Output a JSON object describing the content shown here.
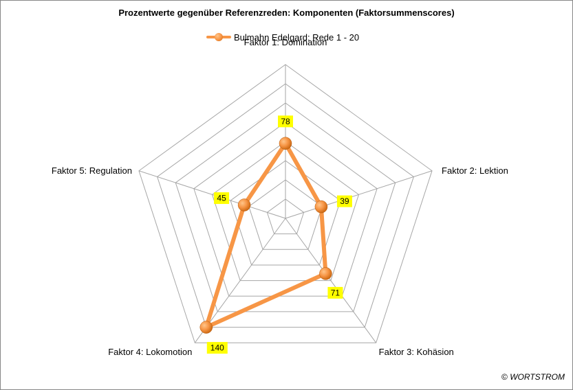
{
  "chart_data": {
    "type": "radar",
    "title": "Prozentwerte gegenüber Referenzreden:  Komponenten (Faktorsummenscores)",
    "categories": [
      "Faktor 1: Domination",
      "Faktor 2: Lektion",
      "Faktor 3: Kohäsion",
      "Faktor 4: Lokomotion",
      "Faktor 5: Regulation"
    ],
    "series": [
      {
        "name": "Bulmahn Edelgard: Rede 1 - 20",
        "values": [
          78,
          39,
          71,
          140,
          45
        ],
        "color": "#f79646"
      }
    ],
    "data_labels": [
      "78",
      "39",
      "71",
      "140",
      "45"
    ],
    "rlim": [
      0,
      160
    ],
    "grid": true,
    "legend_position": "top",
    "label_background": "#ffff00"
  },
  "footer": {
    "copyright_symbol": "©",
    "brand": "WORTSTROM"
  }
}
